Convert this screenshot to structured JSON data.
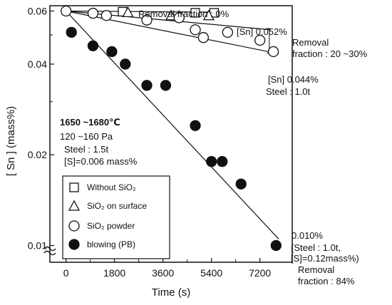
{
  "chart_data": {
    "type": "scatter",
    "xlabel": "Time (s)",
    "ylabel": "[ Sn ]  (mass%)",
    "y_scale": "log",
    "xlim": [
      -600,
      8400
    ],
    "ylim": [
      0.0088,
      0.0625
    ],
    "x_ticks": [
      0,
      1800,
      3600,
      5400,
      7200
    ],
    "x_tick_labels": [
      "0",
      "1800",
      "3600",
      "5400",
      "7200"
    ],
    "y_ticks": [
      0.01,
      0.02,
      0.04,
      0.06
    ],
    "y_tick_labels": [
      "0.01",
      "0.02",
      "0.04",
      "0.06"
    ],
    "grid": false,
    "series": [
      {
        "name": "Without SiO₂",
        "marker": "square",
        "fill": "open",
        "x": [
          2100,
          4800,
          5500
        ],
        "y": [
          0.0597,
          0.0592,
          0.0592
        ]
      },
      {
        "name": "SiO₂  on surface",
        "marker": "triangle",
        "fill": "open",
        "x": [
          2300,
          3900,
          5300
        ],
        "y": [
          0.0594,
          0.058,
          0.058
        ]
      },
      {
        "name": "SiO₂ powder blowing (PB)",
        "name_lines": [
          "SiO₂ powder",
          "blowing (PB)"
        ],
        "marker": "circle",
        "fill": "open",
        "x": [
          0,
          1000,
          1500,
          3000,
          4200,
          4800,
          5100,
          6000,
          7200,
          7700
        ],
        "y": [
          0.06,
          0.059,
          0.058,
          0.056,
          0.057,
          0.052,
          0.049,
          0.051,
          0.048,
          0.044
        ]
      },
      {
        "name": "SiO₂ powder blowing (PB), filled",
        "marker": "circle",
        "fill": "solid",
        "x": [
          200,
          1000,
          1700,
          2200,
          3000,
          3700,
          4800,
          5400,
          5800,
          6500,
          7800
        ],
        "y": [
          0.051,
          0.046,
          0.044,
          0.04,
          0.034,
          0.034,
          0.025,
          0.019,
          0.019,
          0.016,
          0.01
        ]
      }
    ],
    "trend_lines": [
      {
        "x": [
          0,
          5500
        ],
        "y": [
          0.06,
          0.0595
        ]
      },
      {
        "x": [
          0,
          7600
        ],
        "y": [
          0.06,
          0.052
        ]
      },
      {
        "x": [
          0,
          7900
        ],
        "y": [
          0.06,
          0.0433
        ]
      },
      {
        "x": [
          0,
          7900
        ],
        "y": [
          0.06,
          0.0105
        ]
      }
    ],
    "annotations": {
      "removal0": "Removal fraction : 0%",
      "sn052": "[Sn] 0.052%",
      "removal2030_l1": "Removal",
      "removal2030_l2": "fraction : 20 ~30%",
      "sn044": "[Sn] 0.044%",
      "steel10": "Steel : 1.0t",
      "temp": "1650 ~1680℃",
      "pressure": "120 ~160 Pa",
      "steel15": "Steel : 1.5t",
      "sulfur": "[S]=0.006 mass%",
      "final_sn": "0.010%",
      "final_cond1": "(Steel : 1.0t,",
      "final_cond2": "[S]=0.12mass%)",
      "removal84_l1": "Removal",
      "removal84_l2": "fraction : 84%"
    }
  }
}
